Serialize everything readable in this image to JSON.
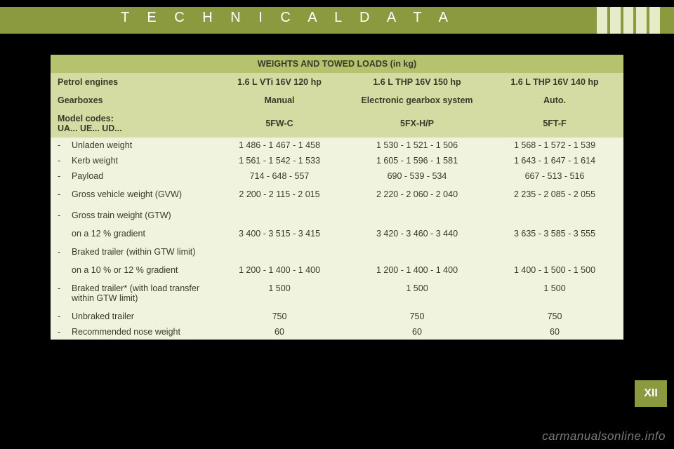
{
  "header": {
    "title": "T E C H N I C A L   D A T A"
  },
  "colors": {
    "page_bg": "#000000",
    "band": "#8c9a3f",
    "stripe": "#e6ecc8",
    "table_bg": "#f0f3dd",
    "hdr_title_bg": "#b6c26d",
    "hdr_row_bg": "#d4dca3",
    "text": "#3a3a2a",
    "white": "#ffffff",
    "watermark": "#7a7a7a"
  },
  "table": {
    "title": "WEIGHTS AND TOWED LOADS (in kg)",
    "columns": [
      "",
      "1.6 L VTi 16V 120 hp",
      "1.6 L THP 16V 150 hp",
      "1.6 L THP 16V 140 hp"
    ],
    "header_rows": [
      {
        "label": "Petrol engines",
        "v1": "1.6 L VTi 16V 120 hp",
        "v2": "1.6 L THP 16V 150 hp",
        "v3": "1.6 L THP 16V 140 hp"
      },
      {
        "label": "Gearboxes",
        "v1": "Manual",
        "v2": "Electronic gearbox system",
        "v3": "Auto."
      },
      {
        "label": "Model codes:\nUA... UE... UD...",
        "v1": "5FW-C",
        "v2": "5FX-H/P",
        "v3": "5FT-F"
      }
    ],
    "body_rows": [
      {
        "dash": "-",
        "label": "Unladen weight",
        "v1": "1 486 - 1 467 - 1 458",
        "v2": "1 530 - 1 521 - 1 506",
        "v3": "1 568 - 1 572 - 1 539"
      },
      {
        "dash": "-",
        "label": "Kerb weight",
        "v1": "1 561 - 1 542 - 1 533",
        "v2": "1 605 - 1 596 - 1 581",
        "v3": "1 643 - 1 647 - 1 614"
      },
      {
        "dash": "-",
        "label": "Payload",
        "v1": "714 - 648 - 557",
        "v2": "690 - 539 - 534",
        "v3": "667 - 513 - 516"
      },
      {
        "dash": "-",
        "label": "Gross vehicle weight (GVW)",
        "v1": "2 200 - 2 115 - 2 015",
        "v2": "2 220 - 2 060 - 2 040",
        "v3": "2 235 - 2 085 - 2 055",
        "spacer": true
      },
      {
        "dash": "-",
        "label": "Gross train weight (GTW)",
        "v1": "",
        "v2": "",
        "v3": "",
        "spacer": true
      },
      {
        "dash": "",
        "label": "on a 12 % gradient",
        "v1": "3 400 - 3 515 - 3 415",
        "v2": "3 420 - 3 460 - 3 440",
        "v3": "3 635 - 3 585 - 3 555"
      },
      {
        "dash": "-",
        "label": "Braked trailer (within GTW limit)",
        "v1": "",
        "v2": "",
        "v3": "",
        "spacer": true
      },
      {
        "dash": "",
        "label": "on a 10 % or 12 % gradient",
        "v1": "1 200 - 1 400 - 1 400",
        "v2": "1 200 - 1 400 - 1 400",
        "v3": "1 400 - 1 500 - 1 500"
      },
      {
        "dash": "-",
        "label": "Braked trailer* (with load transfer within GTW limit)",
        "v1": "1 500",
        "v2": "1 500",
        "v3": "1 500",
        "spacer": true
      },
      {
        "dash": "-",
        "label": "Unbraked trailer",
        "v1": "750",
        "v2": "750",
        "v3": "750"
      },
      {
        "dash": "-",
        "label": "Recommended nose weight",
        "v1": "60",
        "v2": "60",
        "v3": "60"
      }
    ]
  },
  "section_tab": "XII",
  "watermark": "carmanualsonline.info"
}
